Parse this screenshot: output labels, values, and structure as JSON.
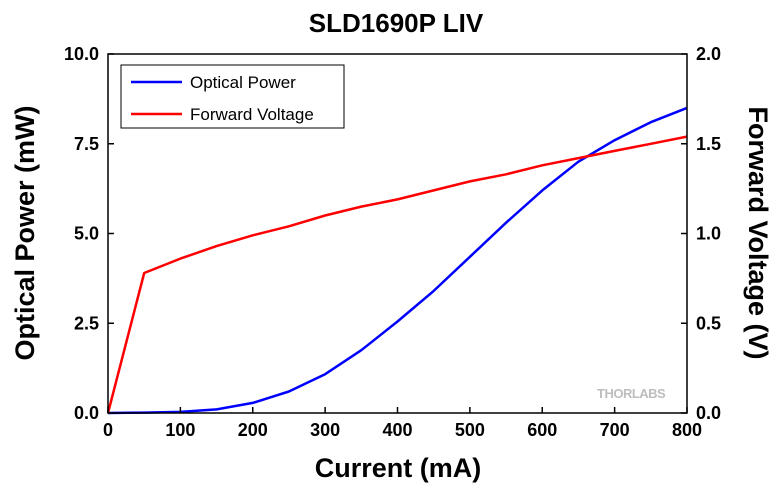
{
  "chart_data": {
    "type": "line",
    "title": "SLD1690P LIV",
    "xlabel": "Current (mA)",
    "ylabel_left": "Optical Power (mW)",
    "ylabel_right": "Forward Voltage (V)",
    "xlim": [
      0,
      800
    ],
    "ylim_left": [
      0,
      10
    ],
    "ylim_right": [
      0,
      2
    ],
    "x_ticks": [
      "0",
      "100",
      "200",
      "300",
      "400",
      "500",
      "600",
      "700",
      "800"
    ],
    "y_ticks_left": [
      "0.0",
      "2.5",
      "5.0",
      "7.5",
      "10.0"
    ],
    "y_ticks_right": [
      "0.0",
      "0.5",
      "1.0",
      "1.5",
      "2.0"
    ],
    "grid": false,
    "legend_position": "top-left",
    "watermark": "THORLABS",
    "series": [
      {
        "name": "Optical Power",
        "axis": "left",
        "color": "#0000ff",
        "x": [
          0,
          50,
          100,
          150,
          200,
          250,
          300,
          350,
          400,
          450,
          500,
          550,
          600,
          650,
          700,
          750,
          800
        ],
        "y": [
          0.0,
          0.01,
          0.03,
          0.1,
          0.28,
          0.6,
          1.08,
          1.75,
          2.55,
          3.4,
          4.35,
          5.3,
          6.2,
          7.0,
          7.6,
          8.1,
          8.5
        ]
      },
      {
        "name": "Forward Voltage",
        "axis": "right",
        "color": "#ff0000",
        "x": [
          0,
          50,
          100,
          150,
          200,
          250,
          300,
          350,
          400,
          450,
          500,
          550,
          600,
          650,
          700,
          750,
          800
        ],
        "y": [
          0.0,
          0.78,
          0.86,
          0.93,
          0.99,
          1.04,
          1.1,
          1.15,
          1.19,
          1.24,
          1.29,
          1.33,
          1.38,
          1.42,
          1.46,
          1.5,
          1.54
        ]
      }
    ]
  }
}
